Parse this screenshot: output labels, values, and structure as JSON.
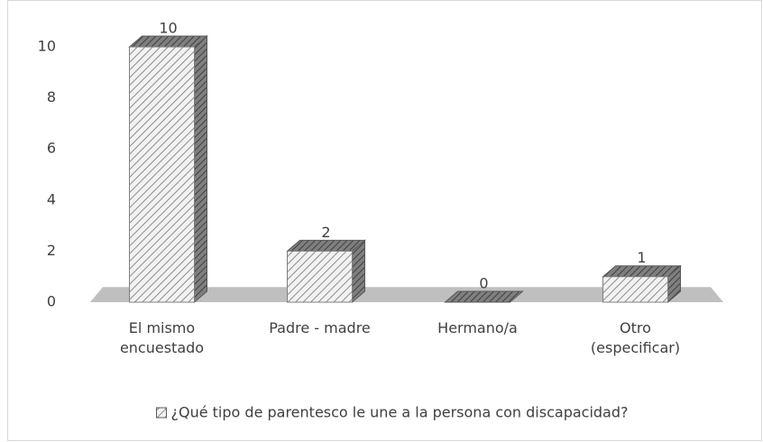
{
  "chart_data": {
    "type": "bar3d",
    "categories": [
      "El mismo encuestado",
      "Padre - madre",
      "Hermano/a",
      "Otro (especificar)"
    ],
    "series": [
      {
        "name": "¿Qué tipo de parentesco le une a la persona con discapacidad?",
        "color": "#d9d9d9",
        "values": [
          10,
          2,
          0,
          1
        ]
      }
    ],
    "ylim": [
      0,
      10
    ],
    "yticks": [
      0,
      2,
      4,
      6,
      8,
      10
    ],
    "grid": false,
    "legend": "bottom"
  }
}
